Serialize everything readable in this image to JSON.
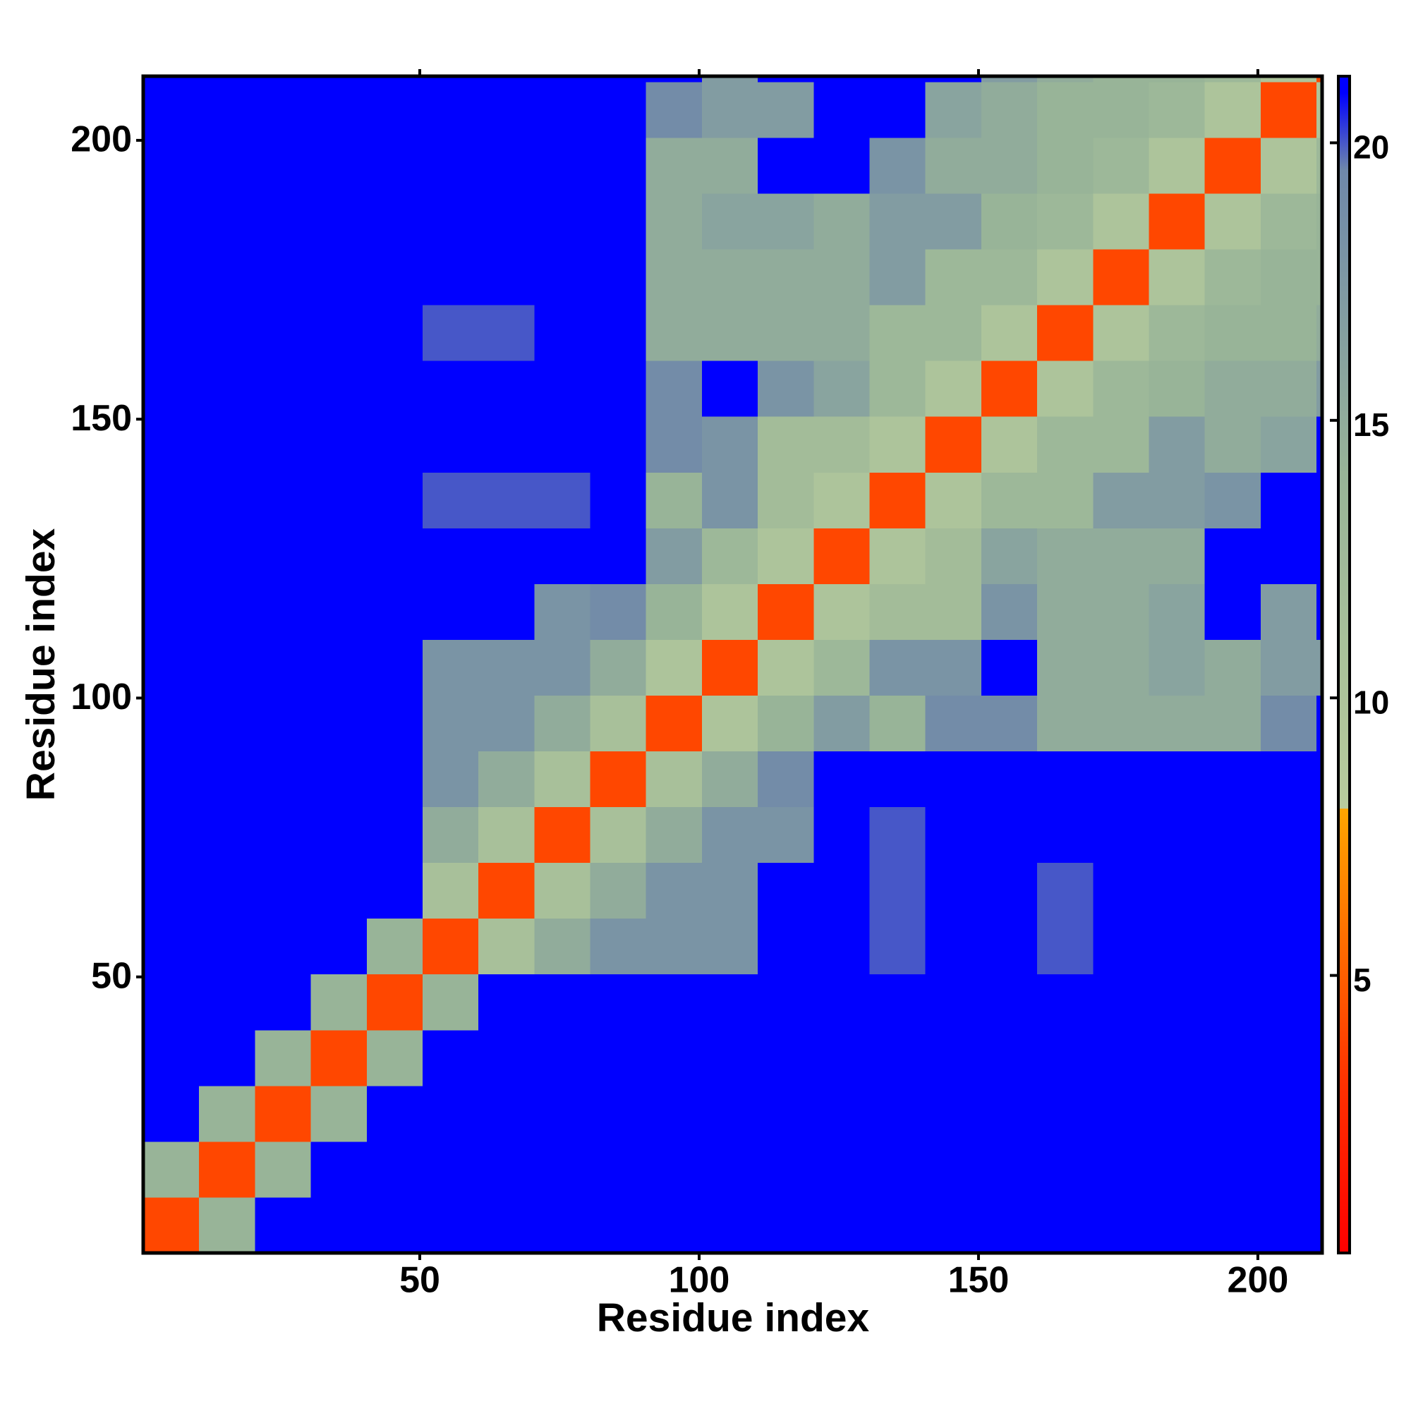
{
  "chart_data": {
    "type": "heatmap",
    "x_label": "Residue index",
    "y_label": "Residue index",
    "xlim": [
      0.5,
      211.5
    ],
    "ylim": [
      0.5,
      211.5
    ],
    "xticks": [
      50,
      100,
      150,
      200
    ],
    "yticks": [
      50,
      100,
      150,
      200
    ],
    "x_bins": [
      0.5,
      10.5,
      20.5,
      30.5,
      40.5,
      50.5,
      60.5,
      70.5,
      80.5,
      90.5,
      100.5,
      110.5,
      120.5,
      130.5,
      140.5,
      150.5,
      160.5,
      170.5,
      180.5,
      190.5,
      200.5,
      210.5,
      211.5
    ],
    "y_bins": [
      0.5,
      10.5,
      20.5,
      30.5,
      40.5,
      50.5,
      60.5,
      70.5,
      80.5,
      90.5,
      100.5,
      110.5,
      120.5,
      130.5,
      140.5,
      150.5,
      160.5,
      170.5,
      180.5,
      190.5,
      200.5,
      210.5,
      211.5
    ],
    "clim": [
      0,
      21.2
    ],
    "cticks": [
      5,
      10,
      15,
      20
    ],
    "colorscale": [
      [
        0,
        "#ff0000"
      ],
      [
        3,
        "#ff3000"
      ],
      [
        8,
        "#ffa500"
      ],
      [
        8.01,
        "#b8cc9c"
      ],
      [
        14,
        "#98b498"
      ],
      [
        19.5,
        "#6f88aa"
      ],
      [
        20.9,
        "#0000ff"
      ],
      [
        21.2,
        "#0000ff"
      ]
    ],
    "z": [
      [
        4,
        14,
        21,
        21,
        21,
        21,
        21,
        21,
        21,
        21,
        21,
        21,
        21,
        21,
        21,
        21,
        21,
        21,
        21,
        21,
        21,
        21
      ],
      [
        14,
        4,
        14,
        21,
        21,
        21,
        21,
        21,
        21,
        21,
        21,
        21,
        21,
        21,
        21,
        21,
        21,
        21,
        21,
        21,
        21,
        21
      ],
      [
        21,
        14,
        4,
        14,
        21,
        21,
        21,
        21,
        21,
        21,
        21,
        21,
        21,
        21,
        21,
        21,
        21,
        21,
        21,
        21,
        21,
        21
      ],
      [
        21,
        21,
        14,
        4,
        14,
        21,
        21,
        21,
        21,
        21,
        21,
        21,
        21,
        21,
        21,
        21,
        21,
        21,
        21,
        21,
        21,
        21
      ],
      [
        21,
        21,
        21,
        14,
        4,
        14,
        21,
        21,
        21,
        21,
        21,
        21,
        21,
        21,
        21,
        21,
        21,
        21,
        21,
        21,
        21,
        21
      ],
      [
        21,
        21,
        21,
        21,
        14,
        4,
        11,
        15,
        18,
        18,
        18,
        21,
        21,
        20,
        21,
        21,
        20,
        21,
        21,
        21,
        21,
        21
      ],
      [
        21,
        21,
        21,
        21,
        21,
        11,
        4,
        11,
        15,
        18,
        18,
        21,
        21,
        20,
        21,
        21,
        20,
        21,
        21,
        21,
        21,
        21
      ],
      [
        21,
        21,
        21,
        21,
        21,
        15,
        11,
        4,
        11,
        15,
        18,
        18,
        21,
        20,
        21,
        21,
        21,
        21,
        21,
        21,
        21,
        21
      ],
      [
        21,
        21,
        21,
        21,
        21,
        18,
        15,
        11,
        4,
        11,
        15,
        19,
        21,
        21,
        21,
        21,
        21,
        21,
        21,
        21,
        21,
        21
      ],
      [
        21,
        21,
        21,
        21,
        21,
        18,
        18,
        15,
        11,
        4,
        10,
        14,
        17,
        14,
        19,
        19,
        15,
        15,
        15,
        15,
        19,
        21
      ],
      [
        21,
        21,
        21,
        21,
        21,
        18,
        18,
        18,
        15,
        10,
        4,
        10,
        13,
        18,
        18,
        21,
        15,
        15,
        16,
        15,
        17,
        17
      ],
      [
        21,
        21,
        21,
        21,
        21,
        21,
        21,
        18,
        19,
        14,
        10,
        4,
        10,
        12,
        12,
        18,
        15,
        15,
        16,
        21,
        17,
        21
      ],
      [
        21,
        21,
        21,
        21,
        21,
        21,
        21,
        21,
        21,
        17,
        13,
        10,
        4,
        10,
        12,
        16,
        15,
        15,
        15,
        21,
        21,
        21
      ],
      [
        21,
        21,
        21,
        21,
        21,
        20,
        20,
        20,
        21,
        14,
        18,
        12,
        10,
        4,
        10,
        13,
        13,
        17,
        17,
        18,
        21,
        21
      ],
      [
        21,
        21,
        21,
        21,
        21,
        21,
        21,
        21,
        21,
        19,
        18,
        12,
        12,
        10,
        4,
        10,
        13,
        13,
        17,
        15,
        16,
        21
      ],
      [
        21,
        21,
        21,
        21,
        21,
        21,
        21,
        21,
        21,
        19,
        21,
        18,
        16,
        13,
        10,
        4,
        10,
        13,
        14,
        15,
        15,
        17
      ],
      [
        21,
        21,
        21,
        21,
        21,
        20,
        20,
        21,
        21,
        15,
        15,
        15,
        15,
        13,
        13,
        10,
        4,
        10,
        13,
        14,
        14,
        15
      ],
      [
        21,
        21,
        21,
        21,
        21,
        21,
        21,
        21,
        21,
        15,
        15,
        15,
        15,
        17,
        13,
        13,
        10,
        4,
        10,
        13,
        14,
        14
      ],
      [
        21,
        21,
        21,
        21,
        21,
        21,
        21,
        21,
        21,
        15,
        16,
        16,
        15,
        17,
        17,
        14,
        13,
        10,
        4,
        10,
        13,
        14
      ],
      [
        21,
        21,
        21,
        21,
        21,
        21,
        21,
        21,
        21,
        15,
        15,
        21,
        21,
        18,
        15,
        15,
        14,
        13,
        10,
        4,
        10,
        13
      ],
      [
        21,
        21,
        21,
        21,
        21,
        21,
        21,
        21,
        21,
        19,
        17,
        17,
        21,
        21,
        16,
        15,
        14,
        14,
        13,
        10,
        4,
        10
      ],
      [
        21,
        21,
        21,
        21,
        21,
        21,
        21,
        21,
        21,
        21,
        17,
        21,
        21,
        21,
        21,
        17,
        15,
        14,
        14,
        13,
        10,
        4
      ]
    ]
  }
}
